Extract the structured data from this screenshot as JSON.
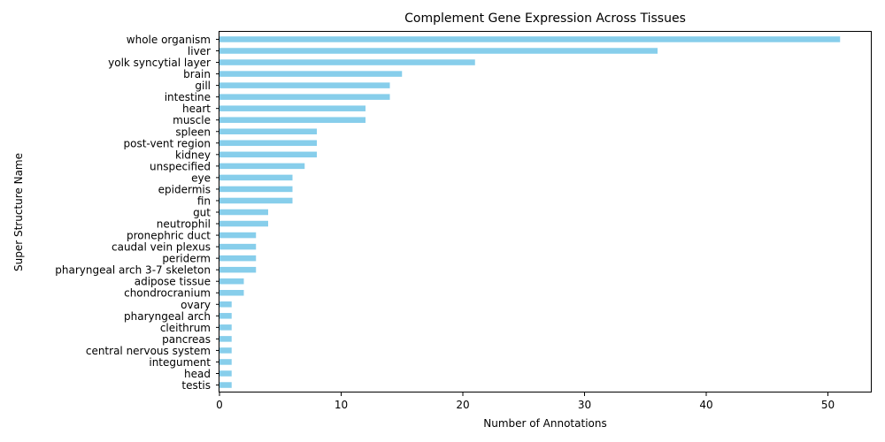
{
  "chart_data": {
    "type": "bar",
    "orientation": "horizontal",
    "title": "Complement Gene Expression Across Tissues",
    "xlabel": "Number of Annotations",
    "ylabel": "Super Structure Name",
    "xlim": [
      0,
      53.6
    ],
    "xticks": [
      0,
      10,
      20,
      30,
      40,
      50
    ],
    "bar_color": "#87ceeb",
    "grid": false,
    "categories": [
      "whole organism",
      "liver",
      "yolk syncytial layer",
      "brain",
      "gill",
      "intestine",
      "heart",
      "muscle",
      "spleen",
      "post-vent region",
      "kidney",
      "unspecified",
      "eye",
      "epidermis",
      "fin",
      "gut",
      "neutrophil",
      "pronephric duct",
      "caudal vein plexus",
      "periderm",
      "pharyngeal arch 3-7 skeleton",
      "adipose tissue",
      "chondrocranium",
      "ovary",
      "pharyngeal arch",
      "cleithrum",
      "pancreas",
      "central nervous system",
      "integument",
      "head",
      "testis"
    ],
    "values": [
      51,
      36,
      21,
      15,
      14,
      14,
      12,
      12,
      8,
      8,
      8,
      7,
      6,
      6,
      6,
      4,
      4,
      3,
      3,
      3,
      3,
      2,
      2,
      1,
      1,
      1,
      1,
      1,
      1,
      1,
      1
    ]
  }
}
